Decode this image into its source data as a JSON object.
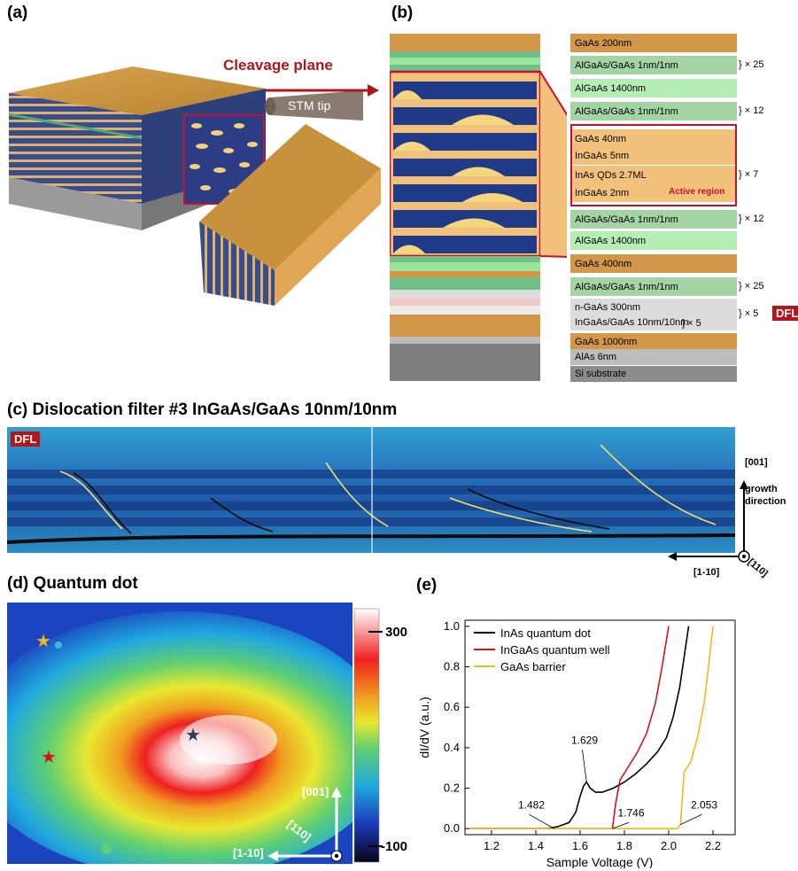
{
  "panels": {
    "a": {
      "label": "(a)",
      "cleavage_plane": "Cleavage plane",
      "stm_tip": "STM tip"
    },
    "b": {
      "label": "(b)",
      "layers": [
        {
          "text": "GaAs 200nm",
          "color": "#d3974a",
          "mult": ""
        },
        {
          "text": "AlGaAs/GaAs 1nm/1nm",
          "color": "#a4d4a4",
          "mult": "} × 25"
        },
        {
          "text": "AlGaAs 1400nm",
          "color": "#b5eeb5",
          "mult": ""
        },
        {
          "text": "AlGaAs/GaAs 1nm/1nm",
          "color": "#a4d4a4",
          "mult": "} × 12"
        },
        {
          "text": "GaAs 40nm",
          "color": "#f2c27c",
          "mult": ""
        },
        {
          "text": "InGaAs 5nm",
          "color": "#f2c27c",
          "mult": ""
        },
        {
          "text": "InAs QDs 2.7ML",
          "color": "#f2c27c",
          "mult": "} × 7"
        },
        {
          "text": "InGaAs 2nm",
          "color": "#f2c27c",
          "mult": ""
        },
        {
          "text": "AlGaAs/GaAs 1nm/1nm",
          "color": "#a4d4a4",
          "mult": "} × 12"
        },
        {
          "text": "AlGaAs 1400nm",
          "color": "#b5eeb5",
          "mult": ""
        },
        {
          "text": "GaAs 400nm",
          "color": "#d3974a",
          "mult": ""
        },
        {
          "text": "AlGaAs/GaAs 1nm/1nm",
          "color": "#a4d4a4",
          "mult": "} × 25"
        },
        {
          "text": "n-GaAs 300nm",
          "color": "#dcdcdc",
          "mult": ""
        },
        {
          "text": "InGaAs/GaAs 10nm/10nm",
          "color": "#dcdcdc",
          "mult": "} × 5"
        },
        {
          "text": "GaAs 1000nm",
          "color": "#d3974a",
          "mult": ""
        },
        {
          "text": "AlAs 6nm",
          "color": "#bcbcbc",
          "mult": ""
        },
        {
          "text": "Si substrate",
          "color": "#8c8c8c",
          "mult": ""
        }
      ],
      "active_region": "Active region",
      "inner_mult": "] × 5",
      "outer_mult": "} × 5",
      "dfl": "DFL"
    },
    "c": {
      "label": "(c) Dislocation filter #3  InGaAs/GaAs 10nm/10nm",
      "dfl": "DFL",
      "axis_001": "[001]",
      "growth": "growth",
      "direction": "direction",
      "axis_1m10": "[1-10]",
      "axis_110": "[110]"
    },
    "d": {
      "label": "(d) Quantum dot",
      "colorbar_max": "300",
      "colorbar_min": "-100",
      "axis_001": "[001]",
      "axis_110": "[110]",
      "axis_1m10": "[1-10]"
    },
    "e": {
      "label": "(e)"
    }
  },
  "chart_data": {
    "type": "line",
    "xlabel": "Sample Voltage (V)",
    "ylabel": "dI/dV (a.u.)",
    "xlim": [
      1.08,
      2.3
    ],
    "ylim": [
      -0.03,
      1.03
    ],
    "xticks": [
      "1.2",
      "1.4",
      "1.6",
      "1.8",
      "2.0",
      "2.2"
    ],
    "yticks": [
      "0.0",
      "0.2",
      "0.4",
      "0.6",
      "0.8",
      "1.0"
    ],
    "legend_position": "top-left",
    "series": [
      {
        "name": "InAs quantum dot",
        "color": "#000000",
        "x": [
          1.1,
          1.3,
          1.45,
          1.5,
          1.55,
          1.58,
          1.6,
          1.615,
          1.629,
          1.645,
          1.67,
          1.7,
          1.75,
          1.8,
          1.85,
          1.9,
          1.95,
          1.99,
          2.02,
          2.05,
          2.07,
          2.09
        ],
        "y": [
          0.0,
          0.0,
          0.0,
          0.01,
          0.03,
          0.08,
          0.16,
          0.21,
          0.23,
          0.2,
          0.18,
          0.18,
          0.2,
          0.23,
          0.27,
          0.32,
          0.38,
          0.45,
          0.55,
          0.7,
          0.85,
          1.0
        ]
      },
      {
        "name": "InGaAs quantum well",
        "color": "#d0161c",
        "x": [
          1.1,
          1.5,
          1.7,
          1.74,
          1.746,
          1.76,
          1.78,
          1.82,
          1.86,
          1.9,
          1.94,
          1.97,
          2.0
        ],
        "y": [
          0.0,
          0.0,
          0.0,
          0.0,
          0.0,
          0.12,
          0.24,
          0.31,
          0.38,
          0.47,
          0.62,
          0.8,
          1.0
        ]
      },
      {
        "name": "GaAs barrier",
        "color": "#f2b81a",
        "x": [
          1.1,
          1.6,
          2.0,
          2.04,
          2.053,
          2.07,
          2.1,
          2.13,
          2.16,
          2.18,
          2.2
        ],
        "y": [
          0.0,
          0.0,
          0.0,
          0.0,
          0.02,
          0.28,
          0.33,
          0.45,
          0.62,
          0.8,
          1.0
        ]
      }
    ],
    "annotations": [
      "1.482",
      "1.629",
      "1.746",
      "2.053"
    ]
  }
}
